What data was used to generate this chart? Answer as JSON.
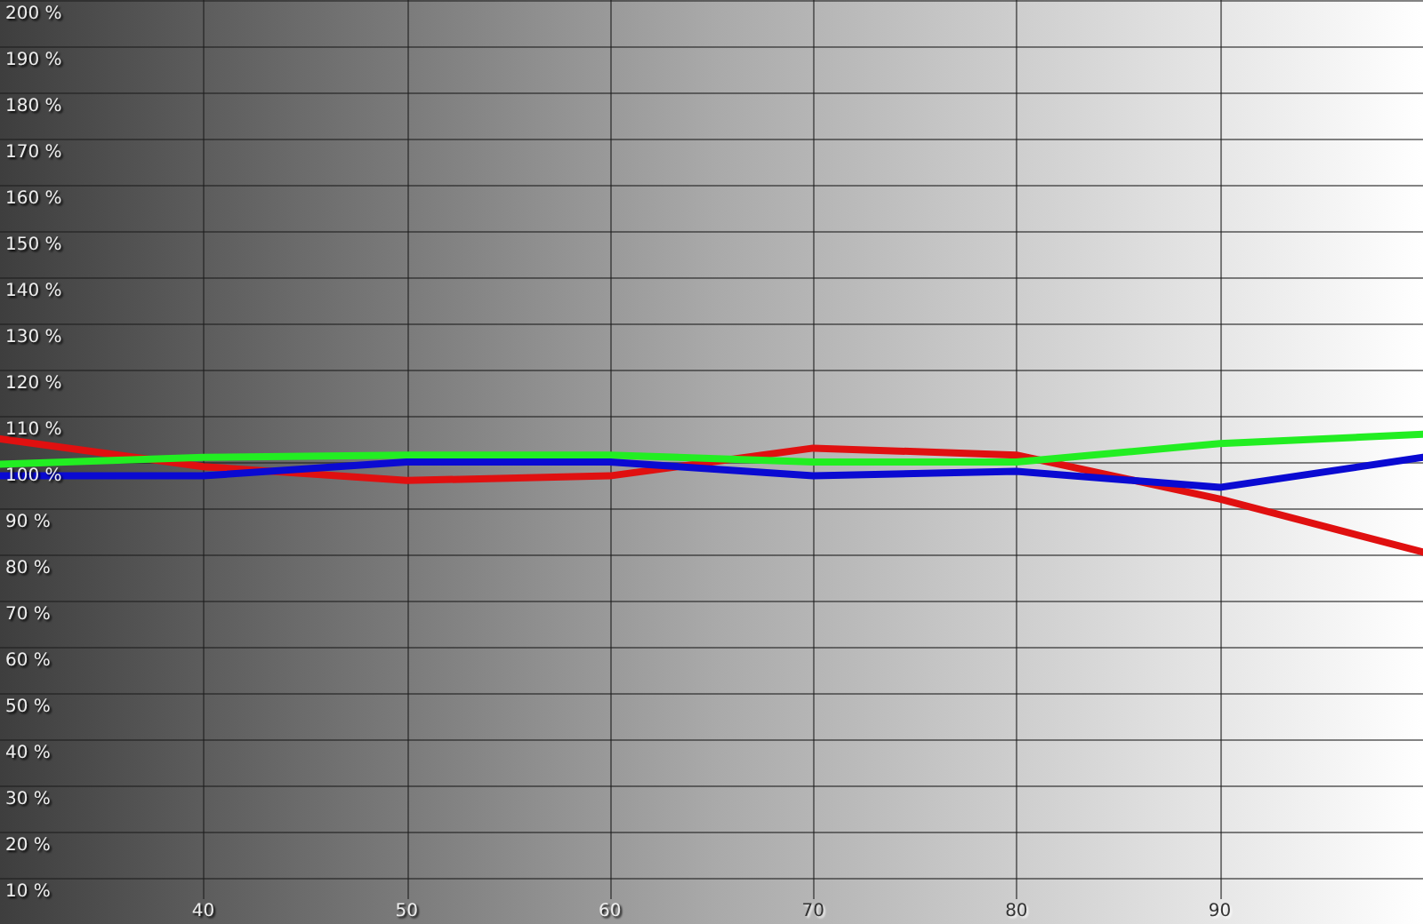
{
  "chart_data": {
    "type": "line",
    "x": [
      30,
      40,
      50,
      60,
      70,
      80,
      90,
      100
    ],
    "xlim": [
      30,
      100
    ],
    "xticks": [
      40,
      50,
      60,
      70,
      80,
      90
    ],
    "ylim": [
      0,
      200
    ],
    "yticks": [
      {
        "value": 10,
        "label": "10 %"
      },
      {
        "value": 20,
        "label": "20 %"
      },
      {
        "value": 30,
        "label": "30 %"
      },
      {
        "value": 40,
        "label": "40 %"
      },
      {
        "value": 50,
        "label": "50 %"
      },
      {
        "value": 60,
        "label": "60 %"
      },
      {
        "value": 70,
        "label": "70 %"
      },
      {
        "value": 80,
        "label": "80 %"
      },
      {
        "value": 90,
        "label": "90 %"
      },
      {
        "value": 100,
        "label": "100 %"
      },
      {
        "value": 110,
        "label": "110 %"
      },
      {
        "value": 120,
        "label": "120 %"
      },
      {
        "value": 130,
        "label": "130 %"
      },
      {
        "value": 140,
        "label": "140 %"
      },
      {
        "value": 150,
        "label": "150 %"
      },
      {
        "value": 160,
        "label": "160 %"
      },
      {
        "value": 170,
        "label": "170 %"
      },
      {
        "value": 180,
        "label": "180 %"
      },
      {
        "value": 190,
        "label": "190 %"
      },
      {
        "value": 200,
        "label": "200 %"
      }
    ],
    "grid": true,
    "legend": false,
    "marker": "none",
    "line_style": "solid",
    "series": [
      {
        "color": "#e01010",
        "values": [
          105,
          99,
          96,
          97,
          103,
          101.5,
          92,
          80.5
        ]
      },
      {
        "color": "#22ee22",
        "values": [
          99.5,
          101,
          101.5,
          101.5,
          100,
          100,
          104,
          106
        ]
      },
      {
        "color": "#0a0ad2",
        "values": [
          97,
          97,
          100,
          100,
          97,
          98,
          94.5,
          101
        ]
      }
    ]
  }
}
